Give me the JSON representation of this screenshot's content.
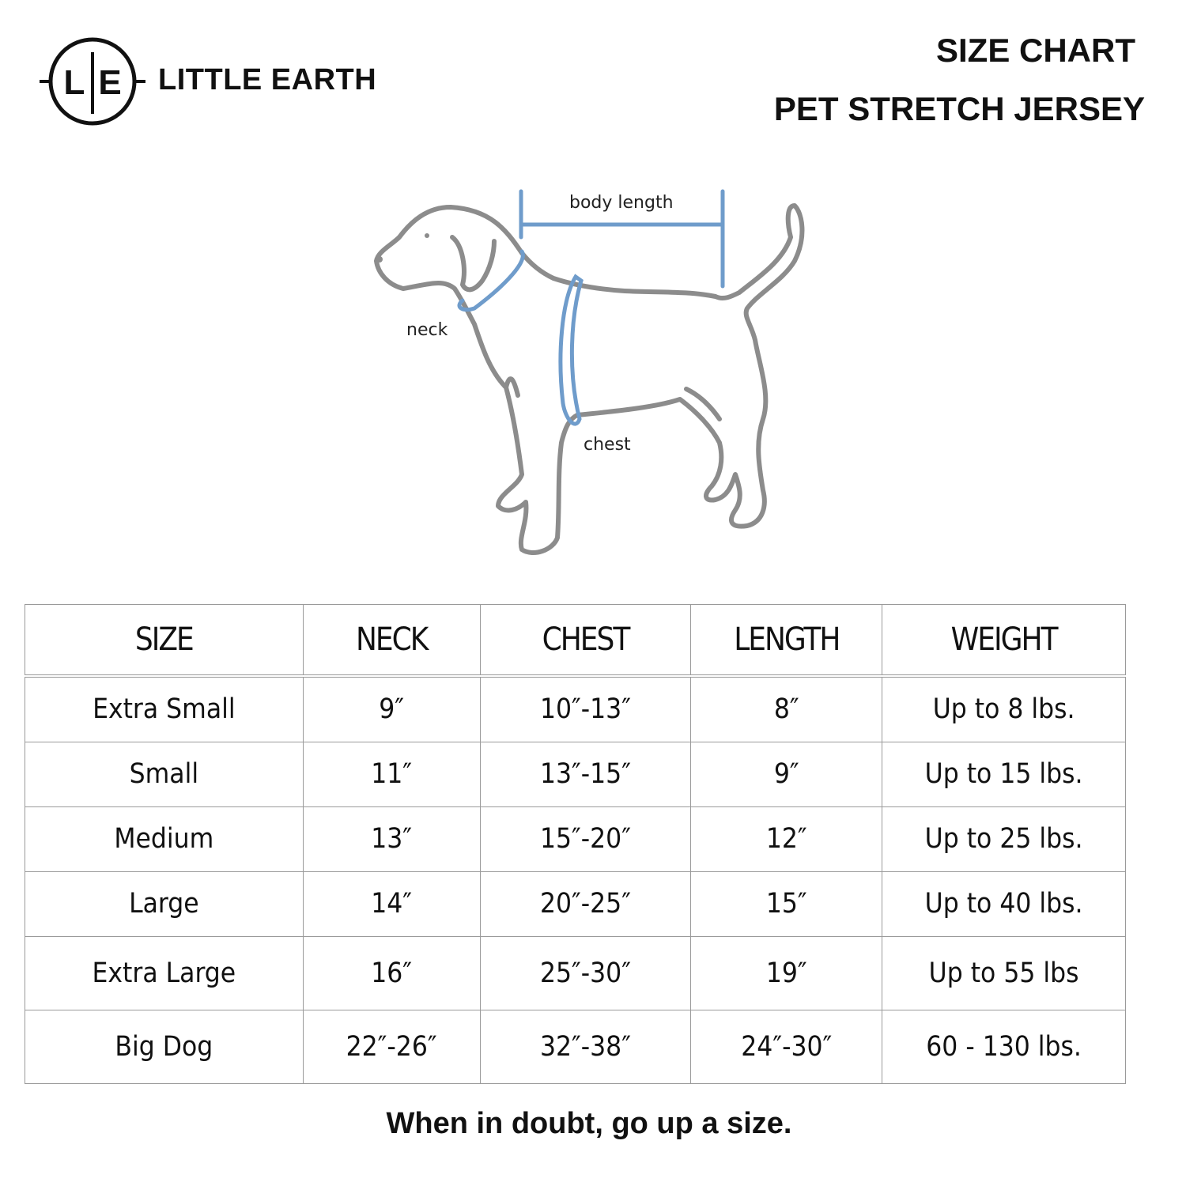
{
  "brand": {
    "logo_letters": "L|E",
    "name": "LITTLE EARTH"
  },
  "header": {
    "title": "SIZE CHART",
    "subtitle": "PET STRETCH JERSEY"
  },
  "diagram": {
    "labels": {
      "body_length": "body length",
      "neck": "neck",
      "chest": "chest"
    },
    "colors": {
      "outline": "#8c8c8c",
      "measure": "#6f9ccb"
    }
  },
  "table": {
    "headers": [
      "SIZE",
      "NECK",
      "CHEST",
      "LENGTH",
      "WEIGHT"
    ],
    "rows": [
      [
        "Extra Small",
        "9″",
        "10″-13″",
        "8″",
        "Up to 8 lbs."
      ],
      [
        "Small",
        "11″",
        "13″-15″",
        "9″",
        "Up to 15 lbs."
      ],
      [
        "Medium",
        "13″",
        "15″-20″",
        "12″",
        "Up to 25 lbs."
      ],
      [
        "Large",
        "14″",
        "20″-25″",
        "15″",
        "Up to 40 lbs."
      ],
      [
        "Extra Large",
        "16″",
        "25″-30″",
        "19″",
        "Up to 55 lbs"
      ],
      [
        "Big Dog",
        "22″-26″",
        "32″-38″",
        "24″-30″",
        "60 - 130 lbs."
      ]
    ]
  },
  "footer": {
    "note": "When in doubt, go up a size."
  }
}
